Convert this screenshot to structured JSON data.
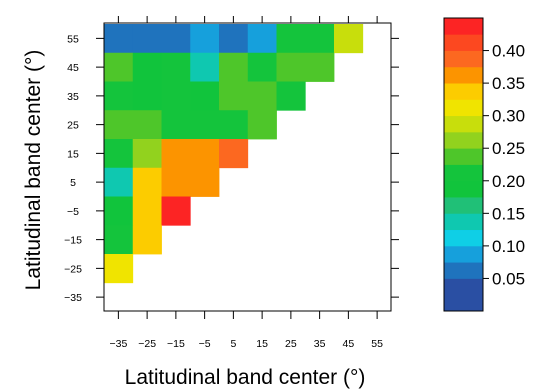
{
  "chart_data": {
    "type": "heatmap",
    "xlabel": "Latitudinal band center (°)",
    "ylabel": "Latitudinal band center (°)",
    "x": [
      "-35",
      "-25",
      "-15",
      "-5",
      "5",
      "15",
      "25",
      "35",
      "45",
      "55"
    ],
    "y": [
      "55",
      "45",
      "35",
      "25",
      "15",
      "5",
      "-5",
      "-15",
      "-25",
      "-35"
    ],
    "values": [
      [
        0.05,
        0.05,
        0.05,
        0.075,
        0.05,
        0.075,
        0.2,
        0.2,
        0.275,
        null
      ],
      [
        0.225,
        0.175,
        0.2,
        0.125,
        0.225,
        0.2,
        0.225,
        0.225,
        null,
        null
      ],
      [
        0.2,
        0.175,
        0.2,
        0.175,
        0.225,
        0.225,
        0.2,
        null,
        null,
        null
      ],
      [
        0.225,
        0.225,
        0.2,
        0.2,
        0.2,
        0.225,
        null,
        null,
        null,
        null
      ],
      [
        0.2,
        0.25,
        0.35,
        0.35,
        0.375,
        null,
        null,
        null,
        null,
        null
      ],
      [
        0.125,
        0.325,
        0.35,
        0.35,
        null,
        null,
        null,
        null,
        null,
        null
      ],
      [
        0.175,
        0.325,
        0.425,
        null,
        null,
        null,
        null,
        null,
        null,
        null
      ],
      [
        0.2,
        0.325,
        null,
        null,
        null,
        null,
        null,
        null,
        null,
        null
      ],
      [
        0.3,
        null,
        null,
        null,
        null,
        null,
        null,
        null,
        null,
        null
      ],
      [
        null,
        null,
        null,
        null,
        null,
        null,
        null,
        null,
        null,
        null
      ]
    ],
    "colorbar": {
      "ticks": [
        "0.05",
        "0.10",
        "0.15",
        "0.20",
        "0.25",
        "0.30",
        "0.35",
        "0.40"
      ],
      "range": [
        0.0,
        0.45
      ],
      "bins": [
        {
          "from": 0.0,
          "to": 0.05,
          "color": "#2a4fa3"
        },
        {
          "from": 0.05,
          "to": 0.075,
          "color": "#1f73bd"
        },
        {
          "from": 0.075,
          "to": 0.1,
          "color": "#16a0dc"
        },
        {
          "from": 0.1,
          "to": 0.125,
          "color": "#0fcfe6"
        },
        {
          "from": 0.125,
          "to": 0.15,
          "color": "#0fc8b0"
        },
        {
          "from": 0.15,
          "to": 0.175,
          "color": "#20c077"
        },
        {
          "from": 0.175,
          "to": 0.2,
          "color": "#11c43c"
        },
        {
          "from": 0.2,
          "to": 0.225,
          "color": "#14c43c"
        },
        {
          "from": 0.225,
          "to": 0.25,
          "color": "#4ec62a"
        },
        {
          "from": 0.25,
          "to": 0.275,
          "color": "#92d21e"
        },
        {
          "from": 0.275,
          "to": 0.3,
          "color": "#c8de0c"
        },
        {
          "from": 0.3,
          "to": 0.325,
          "color": "#f0e400"
        },
        {
          "from": 0.325,
          "to": 0.35,
          "color": "#fccc00"
        },
        {
          "from": 0.35,
          "to": 0.375,
          "color": "#fc9400"
        },
        {
          "from": 0.375,
          "to": 0.4,
          "color": "#fc6820"
        },
        {
          "from": 0.4,
          "to": 0.425,
          "color": "#fc4820"
        },
        {
          "from": 0.425,
          "to": 0.45,
          "color": "#fc2424"
        }
      ]
    }
  }
}
